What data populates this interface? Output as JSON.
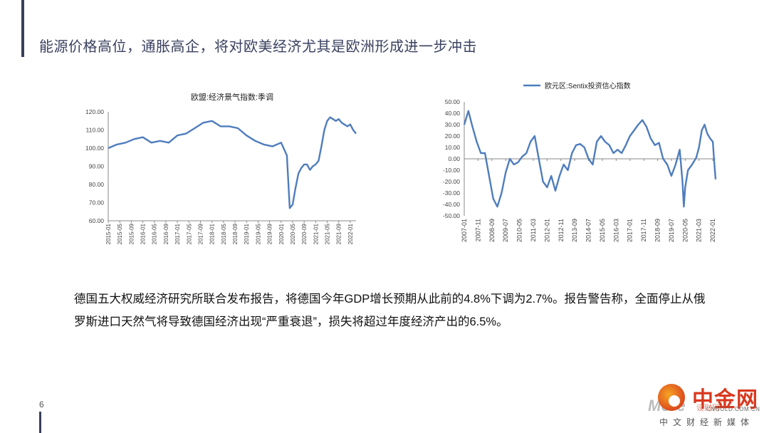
{
  "slide": {
    "title": "能源价格高位，通胀高企，将对欧美经济尤其是欧洲形成进一步冲击",
    "body": "德国五大权威经济研究所联合发布报告，将德国今年GDP增长预期从此前的4.8%下调为2.7%。报告警告称，全面停止从俄罗斯进口天然气将导致德国经济出现“严重衰退”，损失将超过年度经济产出的6.5%。",
    "page_number": "6",
    "logo": {
      "name_cn": "中金网",
      "url": "CNGOLD.COM.CN",
      "subtitle": "中文财经新媒体",
      "watermark": "More",
      "overlay": "设财网"
    },
    "colors": {
      "accent": "#39405a",
      "line": "#4f7dbd",
      "logo": "#d9381e"
    }
  },
  "chart_data": [
    {
      "type": "line",
      "title": "欧盟:经济景气指数:季调",
      "ylim": [
        60,
        120
      ],
      "yticks": [
        "60.00",
        "70.00",
        "80.00",
        "90.00",
        "100.00",
        "110.00",
        "120.00"
      ],
      "xticks": [
        "2015-01",
        "2015-05",
        "2015-09",
        "2016-01",
        "2016-05",
        "2016-09",
        "2017-01",
        "2017-05",
        "2017-09",
        "2018-01",
        "2018-05",
        "2018-09",
        "2019-01",
        "2019-05",
        "2019-09",
        "2020-01",
        "2020-05",
        "2020-09",
        "2021-01",
        "2021-05",
        "2021-09",
        "2022-01"
      ],
      "x": [
        "2015-01",
        "2015-04",
        "2015-07",
        "2015-10",
        "2016-01",
        "2016-04",
        "2016-07",
        "2016-10",
        "2017-01",
        "2017-04",
        "2017-07",
        "2017-10",
        "2018-01",
        "2018-04",
        "2018-07",
        "2018-10",
        "2019-01",
        "2019-04",
        "2019-07",
        "2019-10",
        "2020-01",
        "2020-03",
        "2020-04",
        "2020-05",
        "2020-06",
        "2020-07",
        "2020-08",
        "2020-09",
        "2020-10",
        "2020-11",
        "2020-12",
        "2021-01",
        "2021-02",
        "2021-03",
        "2021-04",
        "2021-05",
        "2021-06",
        "2021-07",
        "2021-08",
        "2021-09",
        "2021-10",
        "2021-11",
        "2021-12",
        "2022-01",
        "2022-02",
        "2022-03"
      ],
      "series": [
        {
          "values": [
            100,
            102,
            103,
            105,
            106,
            103,
            104,
            103,
            107,
            108,
            111,
            114,
            115,
            112,
            112,
            111,
            107,
            104,
            102,
            101,
            103,
            96,
            67,
            69,
            78,
            86,
            89,
            91,
            91,
            88,
            90,
            91,
            93,
            101,
            110,
            115,
            117,
            116,
            115,
            116,
            114,
            113,
            112,
            113,
            110,
            108
          ]
        }
      ]
    },
    {
      "type": "line",
      "legend": "欧元区:Sentix投资信心指数",
      "ylim": [
        -50,
        50
      ],
      "yticks": [
        "50.00",
        "40.00",
        "30.00",
        "20.00",
        "10.00",
        "0.00",
        "-10.00",
        "-20.00",
        "-30.00",
        "-40.00",
        "-50.00"
      ],
      "xticks": [
        "2007-01",
        "2007-11",
        "2008-09",
        "2009-07",
        "2010-05",
        "2011-03",
        "2012-01",
        "2012-11",
        "2013-09",
        "2014-07",
        "2015-05",
        "2016-03",
        "2017-01",
        "2017-11",
        "2018-09",
        "2019-07",
        "2020-05",
        "2021-03",
        "2022-01"
      ],
      "x": [
        "2007-01",
        "2007-04",
        "2007-07",
        "2007-10",
        "2008-01",
        "2008-04",
        "2008-07",
        "2008-10",
        "2009-01",
        "2009-04",
        "2009-07",
        "2009-10",
        "2010-01",
        "2010-04",
        "2010-07",
        "2010-10",
        "2011-01",
        "2011-04",
        "2011-07",
        "2011-10",
        "2012-01",
        "2012-04",
        "2012-07",
        "2012-10",
        "2013-01",
        "2013-04",
        "2013-07",
        "2013-10",
        "2014-01",
        "2014-04",
        "2014-07",
        "2014-10",
        "2015-01",
        "2015-04",
        "2015-07",
        "2015-10",
        "2016-01",
        "2016-04",
        "2016-07",
        "2016-10",
        "2017-01",
        "2017-04",
        "2017-07",
        "2017-10",
        "2018-01",
        "2018-04",
        "2018-07",
        "2018-10",
        "2019-01",
        "2019-04",
        "2019-07",
        "2019-10",
        "2020-01",
        "2020-03",
        "2020-04",
        "2020-05",
        "2020-07",
        "2020-10",
        "2021-01",
        "2021-03",
        "2021-05",
        "2021-07",
        "2021-09",
        "2021-11",
        "2022-01",
        "2022-02",
        "2022-03"
      ],
      "series": [
        {
          "name": "欧元区:Sentix投资信心指数",
          "values": [
            30,
            42,
            28,
            15,
            5,
            5,
            -15,
            -35,
            -42,
            -30,
            -12,
            0,
            -5,
            -3,
            2,
            5,
            15,
            20,
            0,
            -20,
            -25,
            -15,
            -28,
            -15,
            -5,
            -10,
            5,
            12,
            13,
            10,
            0,
            -5,
            15,
            20,
            15,
            12,
            5,
            8,
            5,
            12,
            20,
            25,
            30,
            34,
            28,
            18,
            12,
            14,
            0,
            -5,
            -15,
            -5,
            8,
            -20,
            -42,
            -25,
            -10,
            -5,
            1,
            10,
            25,
            30,
            22,
            18,
            15,
            -3,
            -18
          ]
        }
      ]
    }
  ]
}
